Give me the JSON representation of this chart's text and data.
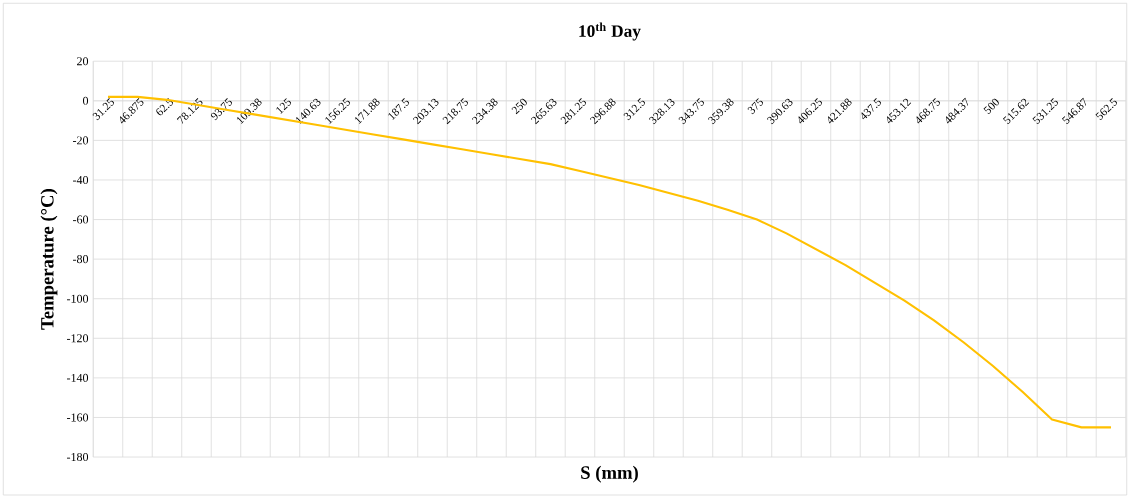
{
  "chart_data": {
    "type": "line",
    "title": "10$^{th}$ Day",
    "xlabel": "S (mm)",
    "ylabel": "Temperature (°C)",
    "categories": [
      "31.25",
      "46.875",
      "62.5",
      "78.125",
      "93.75",
      "109.38",
      "125",
      "140.63",
      "156.25",
      "171.88",
      "187.5",
      "203.13",
      "218.75",
      "234.38",
      "250",
      "265.63",
      "281.25",
      "296.88",
      "312.5",
      "328.13",
      "343.75",
      "359.38",
      "375",
      "390.63",
      "406.25",
      "421.88",
      "437.5",
      "453.12",
      "468.75",
      "484.37",
      "500",
      "515.62",
      "531.25",
      "546.87",
      "562.5"
    ],
    "series": [
      {
        "color": "#ffc000",
        "values": [
          2,
          2,
          0.5,
          -2,
          -4.5,
          -7,
          -9.5,
          -12,
          -14.5,
          -17,
          -19.5,
          -22,
          -24.5,
          -27,
          -29.5,
          -32,
          -35.5,
          -39,
          -42.5,
          -46.5,
          -50.5,
          -55,
          -60,
          -67,
          -75,
          -83,
          -92,
          -101,
          -111,
          -122,
          -134,
          -147,
          -161,
          -165,
          -165
        ]
      }
    ],
    "ylim": [
      -180,
      20
    ],
    "yticks": [
      -180,
      -160,
      -140,
      -120,
      -100,
      -80,
      -60,
      -40,
      -20,
      0,
      20
    ],
    "grid": true
  }
}
